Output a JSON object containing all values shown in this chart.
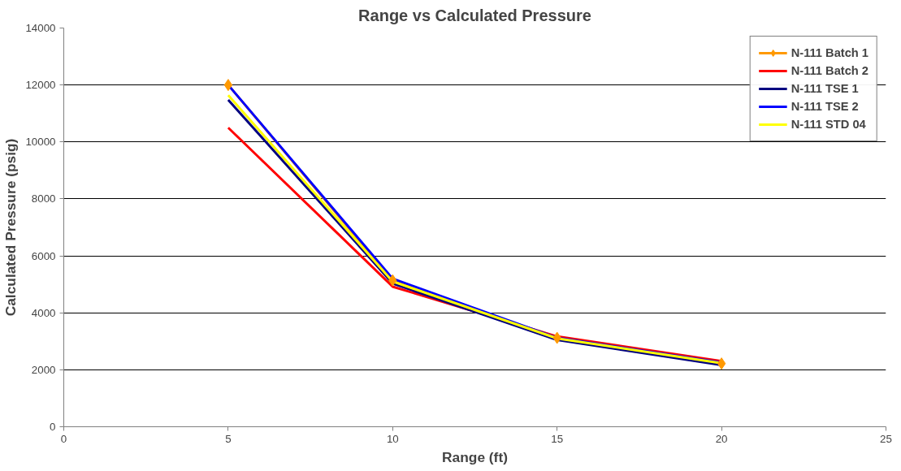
{
  "chart_data": {
    "type": "line",
    "title": "Range vs Calculated Pressure",
    "xlabel": "Range (ft)",
    "ylabel": "Calculated Pressure (psig)",
    "x": [
      5,
      10,
      15,
      20
    ],
    "series": [
      {
        "name": "N-111 Batch 1",
        "color": "#ff9900",
        "marker": "diamond",
        "values": [
          12000,
          5140,
          3120,
          2220
        ]
      },
      {
        "name": "N-111 Batch 2",
        "color": "#ff0000",
        "marker": "none",
        "values": [
          10500,
          4920,
          3170,
          2300
        ]
      },
      {
        "name": "N-111 TSE 1",
        "color": "#000080",
        "marker": "none",
        "values": [
          11480,
          5030,
          3050,
          2170
        ]
      },
      {
        "name": "N-111 TSE 2",
        "color": "#0000ff",
        "marker": "none",
        "values": [
          12000,
          5200,
          3120,
          2250
        ]
      },
      {
        "name": "N-111 STD 04",
        "color": "#ffff00",
        "marker": "none",
        "values": [
          11640,
          5100,
          3100,
          2230
        ]
      }
    ],
    "xlim": [
      0,
      25
    ],
    "xticks": [
      0,
      5,
      10,
      15,
      20,
      25
    ],
    "ylim": [
      0,
      14000
    ],
    "yticks": [
      0,
      2000,
      4000,
      6000,
      8000,
      10000,
      12000,
      14000
    ],
    "grid": "y",
    "legend": "top right"
  }
}
